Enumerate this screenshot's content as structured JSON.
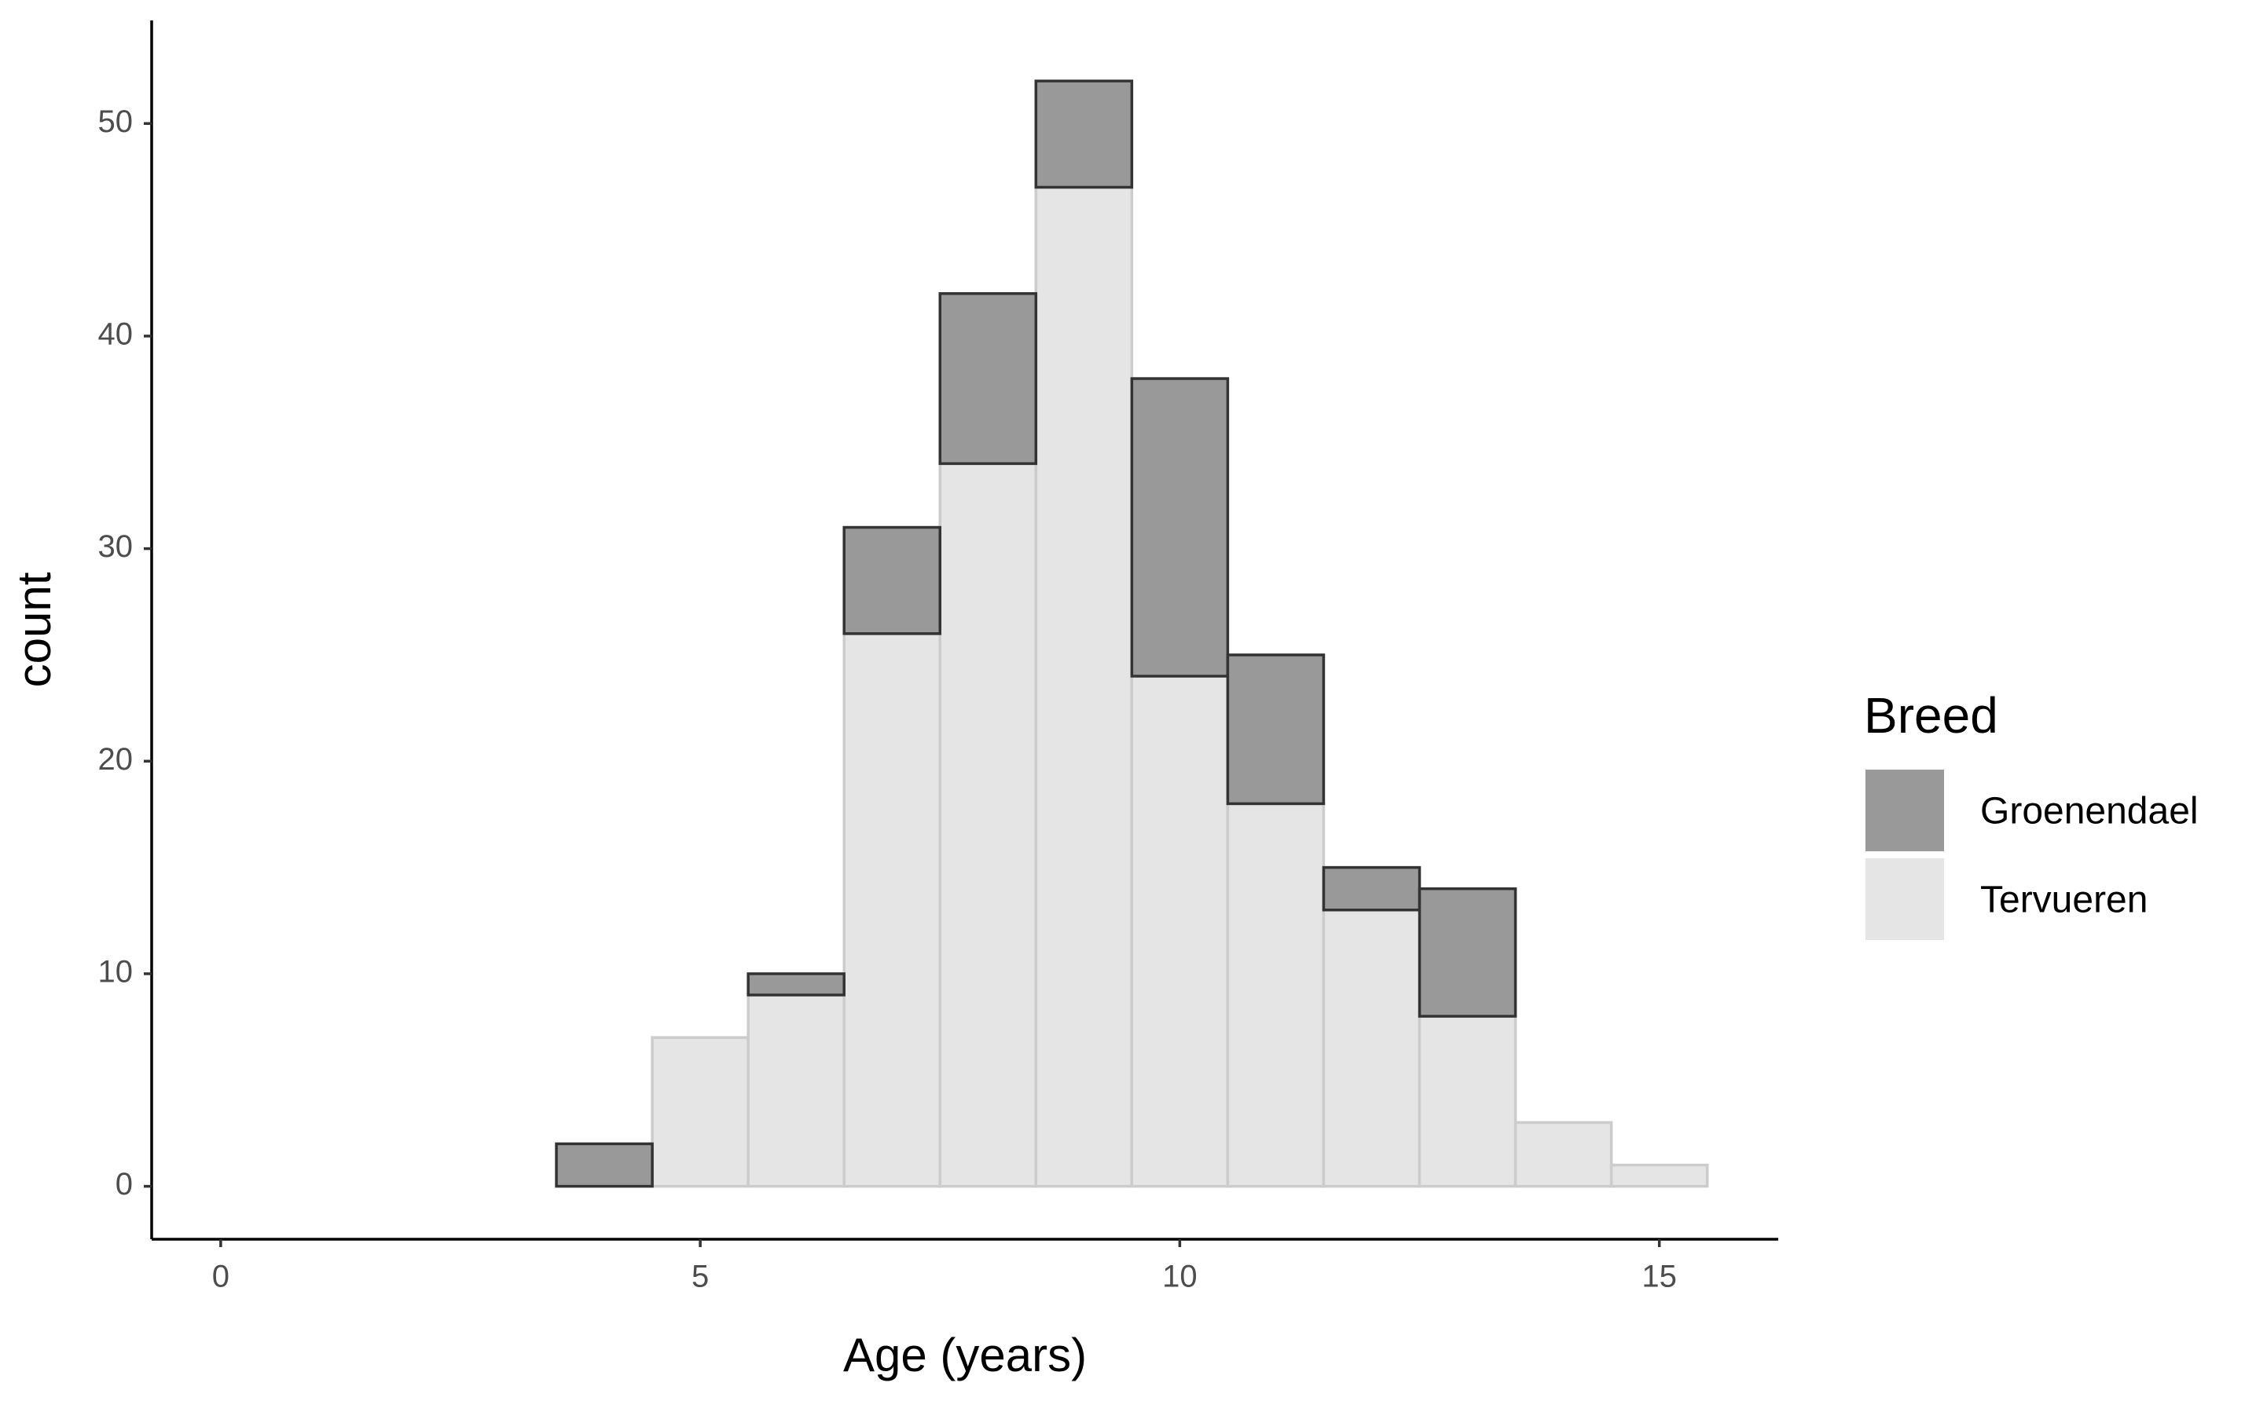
{
  "chart_data": {
    "type": "histogram",
    "x_label": "Age (years)",
    "y_label": "count",
    "legend_title": "Breed",
    "bins": [
      0.5,
      1.5,
      2.5,
      3.5,
      4.5,
      5.5,
      6.5,
      7.5,
      8.5,
      9.5,
      10.5,
      11.5,
      12.5,
      13.5,
      14.5,
      15.5
    ],
    "series": [
      {
        "name": "Groenendael",
        "color": "#999999",
        "stroke": "#333333",
        "values": [
          0,
          0,
          0,
          2,
          0,
          1,
          5,
          8,
          5,
          14,
          7,
          2,
          6,
          0,
          0
        ]
      },
      {
        "name": "Tervueren",
        "color": "#e5e5e5",
        "stroke": "#cccccc",
        "values": [
          0,
          0,
          0,
          0,
          7,
          9,
          26,
          34,
          47,
          24,
          18,
          13,
          8,
          3,
          1
        ]
      }
    ],
    "stacked": true,
    "xlim": [
      -0.72,
      16.24
    ],
    "ylim": [
      -2.49,
      54.85
    ],
    "xticks": [
      0,
      5,
      10,
      15
    ],
    "yticks": [
      0,
      10,
      20,
      30,
      40,
      50
    ],
    "grid": false
  }
}
